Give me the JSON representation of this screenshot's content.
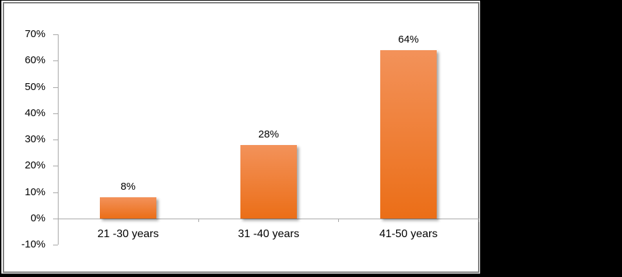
{
  "chart_data": {
    "type": "bar",
    "title": "",
    "xlabel": "",
    "ylabel": "",
    "categories": [
      "21 -30 years",
      "31 -40 years",
      "41-50 years"
    ],
    "values": [
      8,
      28,
      64
    ],
    "value_labels": [
      "8%",
      "28%",
      "64%"
    ],
    "ylim": [
      -10,
      70
    ],
    "ytick_step": 10,
    "ytick_labels": [
      "70%",
      "60%",
      "50%",
      "40%",
      "30%",
      "20%",
      "10%",
      "0%",
      "-10%"
    ],
    "ytick_values": [
      70,
      60,
      50,
      40,
      30,
      20,
      10,
      0,
      -10
    ],
    "grid": false,
    "legend": "none",
    "colors": {
      "bar_gradient_top": "#F3925A",
      "bar_gradient_bottom": "#EB6E17",
      "axis_line": "#A6A6A6",
      "text": "#000000",
      "chart_background": "#FFFFFF",
      "chart_border": "#7F7F7F",
      "page_background": "#000000"
    }
  }
}
